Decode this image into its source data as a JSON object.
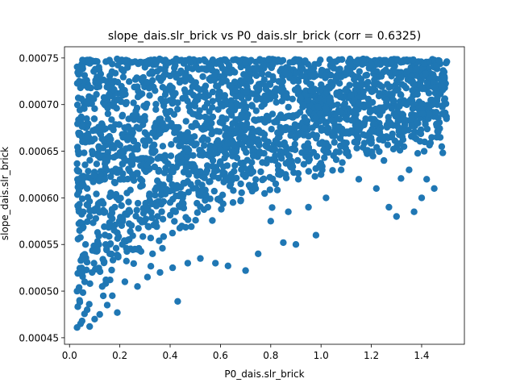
{
  "chart_data": {
    "type": "scatter",
    "title": "slope_dais.slr_brick vs P0_dais.slr_brick (corr = 0.6325)",
    "xlabel": "P0_dais.slr_brick",
    "ylabel": "slope_dais.slr_brick",
    "xlim": [
      -0.02,
      1.57
    ],
    "ylim": [
      0.000443,
      0.000762
    ],
    "xticks": [
      0.0,
      0.2,
      0.4,
      0.6,
      0.8,
      1.0,
      1.2,
      1.4
    ],
    "xtick_labels": [
      "0.0",
      "0.2",
      "0.4",
      "0.6",
      "0.8",
      "1.0",
      "1.2",
      "1.4"
    ],
    "yticks": [
      0.00045,
      0.0005,
      0.00055,
      0.0006,
      0.00065,
      0.0007,
      0.00075
    ],
    "ytick_labels": [
      "0.00045",
      "0.00050",
      "0.00055",
      "0.00060",
      "0.00065",
      "0.00070",
      "0.00075"
    ],
    "correlation": 0.6325,
    "marker_color": "#1f77b4",
    "grid": false,
    "legend": "none",
    "points": [
      [
        0.03,
        0.000461
      ],
      [
        0.08,
        0.000462
      ],
      [
        0.05,
        0.000468
      ],
      [
        0.1,
        0.00047
      ],
      [
        0.12,
        0.000475
      ],
      [
        0.19,
        0.000477
      ],
      [
        0.43,
        0.000489
      ],
      [
        0.04,
        0.00049
      ],
      [
        0.07,
        0.00048
      ],
      [
        0.15,
        0.000485
      ],
      [
        0.03,
        0.0005
      ],
      [
        0.06,
        0.00051
      ],
      [
        0.09,
        0.00052
      ],
      [
        0.13,
        0.000505
      ],
      [
        0.17,
        0.000495
      ],
      [
        0.22,
        0.00051
      ],
      [
        0.27,
        0.000505
      ],
      [
        0.31,
        0.000515
      ],
      [
        0.36,
        0.00052
      ],
      [
        0.41,
        0.000525
      ],
      [
        0.05,
        0.000535
      ],
      [
        0.11,
        0.000545
      ],
      [
        0.16,
        0.00054
      ],
      [
        0.21,
        0.00055
      ],
      [
        0.26,
        0.000545
      ],
      [
        0.33,
        0.00054
      ],
      [
        0.47,
        0.00053
      ],
      [
        0.52,
        0.000535
      ],
      [
        0.58,
        0.00053
      ],
      [
        0.63,
        0.000527
      ],
      [
        0.7,
        0.000522
      ],
      [
        0.75,
        0.00054
      ],
      [
        0.85,
        0.000552
      ],
      [
        0.9,
        0.00055
      ],
      [
        0.98,
        0.00056
      ],
      [
        0.04,
        0.000565
      ],
      [
        0.08,
        0.00058
      ],
      [
        0.12,
        0.000595
      ],
      [
        0.18,
        0.00059
      ],
      [
        0.24,
        0.000585
      ],
      [
        0.29,
        0.000575
      ],
      [
        0.35,
        0.00058
      ],
      [
        0.4,
        0.000595
      ],
      [
        0.45,
        0.0006
      ],
      [
        0.55,
        0.00059
      ],
      [
        0.65,
        0.000595
      ],
      [
        0.8,
        0.000575
      ],
      [
        0.87,
        0.000585
      ],
      [
        0.95,
        0.00059
      ],
      [
        1.02,
        0.0006
      ],
      [
        0.07,
        0.00061
      ],
      [
        0.14,
        0.00062
      ],
      [
        0.2,
        0.00063
      ],
      [
        0.25,
        0.000625
      ],
      [
        0.31,
        0.000635
      ],
      [
        0.38,
        0.00064
      ],
      [
        0.44,
        0.000645
      ],
      [
        0.5,
        0.00063
      ],
      [
        0.57,
        0.00064
      ],
      [
        0.62,
        0.00062
      ],
      [
        0.69,
        0.000625
      ],
      [
        0.74,
        0.00061
      ],
      [
        0.82,
        0.000615
      ],
      [
        0.91,
        0.00062
      ],
      [
        1.0,
        0.000625
      ],
      [
        1.08,
        0.00063
      ],
      [
        1.15,
        0.00062
      ],
      [
        1.22,
        0.00061
      ],
      [
        1.27,
        0.00059
      ],
      [
        1.3,
        0.00058
      ],
      [
        1.37,
        0.000585
      ],
      [
        1.4,
        0.0006
      ],
      [
        1.45,
        0.00061
      ],
      [
        1.42,
        0.00062
      ],
      [
        1.35,
        0.00063
      ],
      [
        0.09,
        0.00065
      ],
      [
        0.16,
        0.00066
      ],
      [
        0.23,
        0.000665
      ],
      [
        0.3,
        0.00067
      ],
      [
        0.37,
        0.00068
      ],
      [
        0.43,
        0.000675
      ],
      [
        0.49,
        0.00069
      ],
      [
        0.55,
        0.000685
      ],
      [
        0.61,
        0.00068
      ],
      [
        0.68,
        0.00067
      ],
      [
        0.73,
        0.000665
      ],
      [
        0.79,
        0.00066
      ],
      [
        0.86,
        0.000655
      ],
      [
        0.94,
        0.00065
      ],
      [
        1.03,
        0.000655
      ],
      [
        1.11,
        0.000645
      ],
      [
        1.18,
        0.00065
      ],
      [
        1.25,
        0.00064
      ],
      [
        1.33,
        0.000655
      ],
      [
        1.41,
        0.00065
      ],
      [
        1.48,
        0.000655
      ],
      [
        1.46,
        0.000665
      ],
      [
        1.39,
        0.00067
      ],
      [
        1.31,
        0.000675
      ],
      [
        1.21,
        0.00068
      ],
      [
        0.14,
        0.0007
      ],
      [
        0.19,
        0.000705
      ],
      [
        0.28,
        0.00071
      ],
      [
        0.34,
        0.000715
      ],
      [
        0.4,
        0.00072
      ],
      [
        0.46,
        0.000725
      ],
      [
        0.53,
        0.00073
      ],
      [
        0.59,
        0.00072
      ],
      [
        0.66,
        0.000715
      ],
      [
        0.72,
        0.000725
      ],
      [
        0.78,
        0.00072
      ],
      [
        0.84,
        0.000715
      ],
      [
        0.89,
        0.000725
      ],
      [
        0.96,
        0.000715
      ],
      [
        1.04,
        0.00072
      ],
      [
        1.12,
        0.00071
      ],
      [
        1.19,
        0.0007
      ],
      [
        1.26,
        0.000705
      ],
      [
        1.34,
        0.0007
      ],
      [
        1.44,
        0.000705
      ],
      [
        1.49,
        0.000705
      ],
      [
        1.43,
        0.00069
      ],
      [
        1.36,
        0.000685
      ],
      [
        1.29,
        0.00069
      ],
      [
        1.23,
        0.000695
      ],
      [
        0.3,
        0.00074
      ],
      [
        0.36,
        0.000738
      ],
      [
        0.42,
        0.000742
      ],
      [
        0.48,
        0.000745
      ],
      [
        0.56,
        0.00074
      ],
      [
        0.62,
        0.000748
      ],
      [
        0.7,
        0.000745
      ],
      [
        0.77,
        0.000742
      ],
      [
        0.83,
        0.000748
      ],
      [
        0.91,
        0.000746
      ],
      [
        0.99,
        0.000744
      ],
      [
        1.07,
        0.000748
      ],
      [
        1.14,
        0.000746
      ],
      [
        1.2,
        0.000743
      ],
      [
        1.28,
        0.000745
      ],
      [
        1.34,
        0.000748
      ],
      [
        1.41,
        0.000744
      ],
      [
        1.47,
        0.000747
      ],
      [
        1.5,
        0.000746
      ],
      [
        1.38,
        0.000738
      ]
    ]
  }
}
